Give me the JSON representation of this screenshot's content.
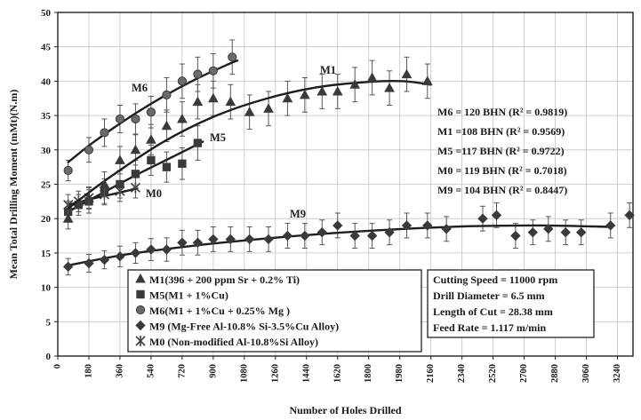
{
  "chart_data": {
    "type": "scatter",
    "xlabel": "Number of Holes Drilled",
    "ylabel": "Mean Total Drilling Moment (mMt)(N.m)",
    "xlim": [
      0,
      3330
    ],
    "ylim": [
      0,
      50
    ],
    "x_ticks": [
      0,
      180,
      360,
      540,
      720,
      900,
      1080,
      1260,
      1440,
      1620,
      1800,
      1980,
      2160,
      2340,
      2520,
      2700,
      2880,
      3060,
      3240
    ],
    "y_ticks": [
      0,
      5,
      10,
      15,
      20,
      25,
      30,
      35,
      40,
      45,
      50
    ],
    "grid": true,
    "legend_placement": "bottom-center",
    "series": [
      {
        "name": "M1(396 + 200 ppm Sr + 0.2% Ti)",
        "tag": "M1",
        "marker": "triangle",
        "x": [
          60,
          180,
          270,
          360,
          450,
          540,
          630,
          720,
          810,
          900,
          1000,
          1110,
          1220,
          1330,
          1430,
          1530,
          1620,
          1720,
          1820,
          1920,
          2020,
          2140
        ],
        "y": [
          20,
          23,
          25,
          28.5,
          30,
          31.5,
          33.5,
          34.5,
          37,
          37.5,
          37,
          35.5,
          36,
          37.5,
          38,
          38.5,
          38.5,
          39.5,
          40.5,
          39,
          41,
          40
        ],
        "err": [
          1.5,
          1.6,
          1.8,
          2.0,
          2.2,
          2.2,
          2.3,
          2.5,
          2.5,
          2.5,
          2.5,
          2.5,
          2.5,
          2.5,
          2.5,
          2.5,
          2.5,
          2.5,
          2.5,
          2.5,
          2.5,
          2.5
        ],
        "fit": [
          [
            60,
            21.5
          ],
          [
            300,
            26
          ],
          [
            600,
            31
          ],
          [
            900,
            34.8
          ],
          [
            1200,
            37.4
          ],
          [
            1500,
            39.1
          ],
          [
            1800,
            39.9
          ],
          [
            2000,
            40
          ],
          [
            2160,
            39.5
          ]
        ]
      },
      {
        "name": "M5(M1 + 1%Cu)",
        "tag": "M5",
        "marker": "square",
        "x": [
          60,
          120,
          180,
          270,
          360,
          450,
          540,
          630,
          720,
          810
        ],
        "y": [
          21,
          22,
          22.5,
          24,
          25,
          26.5,
          28.5,
          27.5,
          28,
          31
        ],
        "err": [
          1.5,
          1.5,
          1.7,
          1.8,
          2.0,
          2.0,
          2.2,
          2.2,
          2.3,
          2.5
        ],
        "fit": [
          [
            60,
            21
          ],
          [
            250,
            23.6
          ],
          [
            450,
            26.3
          ],
          [
            650,
            28.8
          ],
          [
            840,
            31.2
          ]
        ]
      },
      {
        "name": "M6(M1 + 1%Cu + 0.25% Mg )",
        "tag": "M6",
        "marker": "circle",
        "x": [
          60,
          180,
          270,
          360,
          450,
          540,
          630,
          720,
          810,
          900,
          1010
        ],
        "y": [
          27,
          30,
          32.5,
          34.5,
          34.5,
          35.5,
          38,
          40,
          41,
          41.5,
          43.5
        ],
        "err": [
          1.5,
          1.8,
          2.0,
          2.0,
          2.2,
          2.3,
          2.5,
          2.5,
          2.5,
          2.5,
          2.5
        ],
        "fit": [
          [
            60,
            28.2
          ],
          [
            200,
            31
          ],
          [
            400,
            34.5
          ],
          [
            600,
            37.6
          ],
          [
            800,
            40.3
          ],
          [
            1000,
            42.6
          ],
          [
            1040,
            43
          ]
        ]
      },
      {
        "name": "M9 (Mg-Free Al-10.8% Si-3.5%Cu Alloy)",
        "tag": "M9",
        "marker": "diamond",
        "x": [
          60,
          180,
          270,
          360,
          450,
          540,
          630,
          720,
          810,
          900,
          1000,
          1110,
          1220,
          1330,
          1430,
          1530,
          1620,
          1720,
          1820,
          1920,
          2020,
          2140,
          2250,
          2460,
          2540,
          2650,
          2750,
          2840,
          2940,
          3030,
          3200,
          3310
        ],
        "y": [
          13,
          13.5,
          14,
          14.5,
          15,
          15.5,
          15.5,
          16.5,
          16.5,
          17,
          17,
          17,
          17,
          17.5,
          17.5,
          18,
          19,
          17.5,
          17.5,
          18,
          19,
          19,
          18.5,
          20,
          20.5,
          17.5,
          18,
          18.5,
          18,
          18,
          19,
          20.5
        ],
        "err": [
          1.2,
          1.3,
          1.3,
          1.5,
          1.5,
          1.6,
          1.7,
          1.8,
          1.8,
          1.8,
          1.8,
          1.8,
          1.8,
          1.8,
          1.8,
          1.8,
          1.8,
          1.8,
          1.8,
          1.8,
          1.8,
          1.8,
          1.8,
          1.8,
          1.8,
          1.8,
          1.8,
          1.8,
          1.8,
          1.8,
          1.8,
          1.8
        ],
        "fit": [
          [
            60,
            13.2
          ],
          [
            400,
            14.8
          ],
          [
            800,
            16.1
          ],
          [
            1200,
            17.1
          ],
          [
            1600,
            17.9
          ],
          [
            2000,
            18.5
          ],
          [
            2400,
            18.9
          ],
          [
            2800,
            19
          ],
          [
            3200,
            18.8
          ]
        ]
      },
      {
        "name": "M0 (Non-modified Al-10.8%Si Alloy)",
        "tag": "M0",
        "marker": "asterisk",
        "x": [
          60,
          120,
          180,
          270,
          360,
          450
        ],
        "y": [
          22,
          22.5,
          23,
          23.5,
          24,
          24.5
        ],
        "err": [
          1.5,
          1.5,
          1.5,
          1.5,
          1.5,
          1.5
        ],
        "fit": [
          [
            60,
            22
          ],
          [
            200,
            22.9
          ],
          [
            360,
            23.8
          ],
          [
            460,
            24.4
          ]
        ]
      }
    ],
    "annotations": {
      "fit_stats": [
        "M6 = 120 BHN (R² =  0.9819)",
        "M1 =108 BHN (R² = 0.9569)",
        "M5 =117 BHN (R² = 0.9722)",
        "M0 = 119 BHN (R² = 0.7018)",
        "M9 = 104 BHN (R² = 0.8447)"
      ],
      "conditions": [
        "Cutting Speed = 11000 rpm",
        "Drill Diameter = 6.5 mm",
        "Length of Cut = 28.38 mm",
        "Feed Rate = 1.117 m/min"
      ]
    }
  }
}
